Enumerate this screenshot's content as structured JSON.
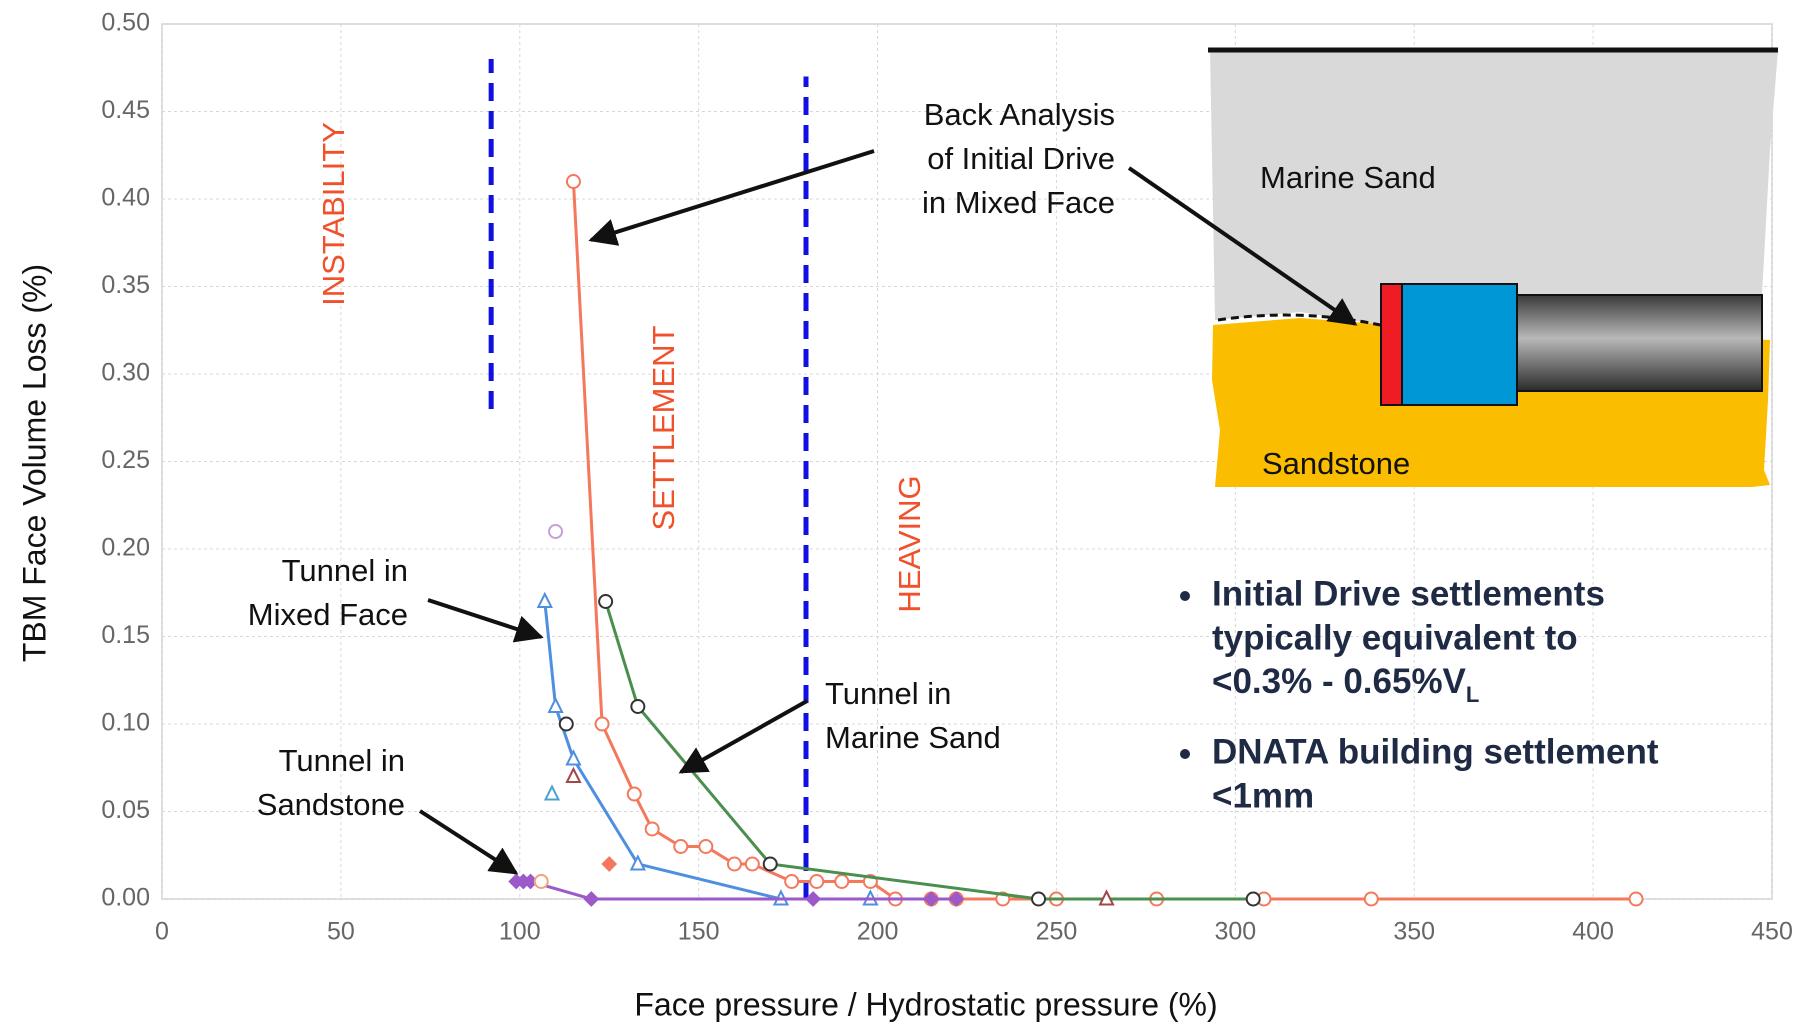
{
  "chart_data": {
    "type": "line",
    "x_label": "Face pressure / Hydrostatic pressure (%)",
    "y_label": "TBM Face Volume Loss (%)",
    "xlim": [
      0,
      450
    ],
    "ylim": [
      0,
      0.5
    ],
    "xticks": [
      0,
      50,
      100,
      150,
      200,
      250,
      300,
      350,
      400,
      450
    ],
    "yticks": [
      {
        "value": 0,
        "label": "0.00"
      },
      {
        "value": 0.05,
        "label": "0.05"
      },
      {
        "value": 0.1,
        "label": "0.10"
      },
      {
        "value": 0.15,
        "label": "0.15"
      },
      {
        "value": 0.2,
        "label": "0.20"
      },
      {
        "value": 0.25,
        "label": "0.25"
      },
      {
        "value": 0.3,
        "label": "0.30"
      },
      {
        "value": 0.35,
        "label": "0.35"
      },
      {
        "value": 0.4,
        "label": "0.40"
      },
      {
        "value": 0.45,
        "label": "0.45"
      },
      {
        "value": 0.5,
        "label": "0.50"
      }
    ],
    "grid": true,
    "series": [
      {
        "color": "#f4785c",
        "marker": "circle",
        "marker_color": "#f4785c",
        "line": true,
        "x": [
          115,
          123,
          132,
          137,
          145,
          152,
          160,
          165,
          176,
          183,
          190,
          198,
          205,
          215,
          222,
          235,
          250,
          278,
          308,
          338,
          412
        ],
        "values": [
          0.41,
          0.1,
          0.06,
          0.04,
          0.03,
          0.03,
          0.02,
          0.02,
          0.01,
          0.01,
          0.01,
          0.01,
          0,
          0,
          0,
          0,
          0,
          0,
          0,
          0,
          0
        ]
      },
      {
        "color": "#4a8f4e",
        "marker": "circle",
        "marker_color": "#333333",
        "line": true,
        "x": [
          124,
          133,
          170,
          245,
          305
        ],
        "values": [
          0.17,
          0.11,
          0.02,
          0,
          0
        ]
      },
      {
        "color": "#4f8fe0",
        "marker": "triangle",
        "marker_color": "#4f8fe0",
        "line": true,
        "x": [
          107,
          110,
          115,
          133,
          173,
          198
        ],
        "values": [
          0.17,
          0.11,
          0.08,
          0.02,
          0,
          0
        ]
      },
      {
        "color": "#9b59c9",
        "marker": "diamond",
        "marker_color": "#9b59c9",
        "line": true,
        "x": [
          99,
          101,
          103,
          120,
          182,
          215,
          222
        ],
        "values": [
          0.01,
          0.01,
          0.01,
          0,
          0,
          0,
          0
        ]
      },
      {
        "color": "#c4a0d8",
        "marker": "circle",
        "marker_color": "#c4a0d8",
        "line": false,
        "x": [
          110
        ],
        "values": [
          0.21
        ]
      },
      {
        "color": "#a04848",
        "marker": "triangle",
        "marker_color": "#a04848",
        "line": false,
        "x": [
          115,
          264
        ],
        "values": [
          0.07,
          0
        ]
      },
      {
        "color": "#4fa0d0",
        "marker": "triangle",
        "marker_color": "#4fa0d0",
        "line": false,
        "x": [
          109
        ],
        "values": [
          0.06
        ]
      },
      {
        "color": "#f4785c",
        "marker": "diamond",
        "marker_color": "#f4785c",
        "line": false,
        "x": [
          125
        ],
        "values": [
          0.02
        ]
      },
      {
        "color": "#333333",
        "marker": "circle",
        "marker_color": "#333333",
        "line": false,
        "x": [
          113
        ],
        "values": [
          0.1
        ]
      },
      {
        "color": "#f4a07c",
        "marker": "circle",
        "marker_color": "#f4a07c",
        "line": false,
        "x": [
          106
        ],
        "values": [
          0.01
        ]
      }
    ],
    "reference_lines": [
      {
        "x": 92,
        "y": [
          0.28,
          0.48
        ],
        "color": "#1010e0"
      },
      {
        "x": 180,
        "y": [
          0,
          0.47
        ],
        "color": "#1010e0"
      }
    ],
    "zone_labels": [
      "INSTABILITY",
      "SETTLEMENT",
      "HEAVING"
    ],
    "callouts": [
      {
        "lines": [
          "Back Analysis",
          "of Initial Drive",
          "in Mixed Face"
        ]
      },
      {
        "lines": [
          "Tunnel in",
          "Mixed Face"
        ]
      },
      {
        "lines": [
          "Tunnel in",
          "Marine Sand"
        ]
      },
      {
        "lines": [
          "Tunnel in",
          "Sandstone"
        ]
      }
    ],
    "inset_labels": [
      "Marine Sand",
      "Sandstone"
    ],
    "bullets": [
      {
        "lines": [
          "Initial Drive settlements",
          "typically equivalent to",
          "<0.3% - 0.65%V"
        ],
        "subscript": "L"
      },
      {
        "lines": [
          "DNATA building settlement",
          "<1mm"
        ]
      }
    ]
  }
}
